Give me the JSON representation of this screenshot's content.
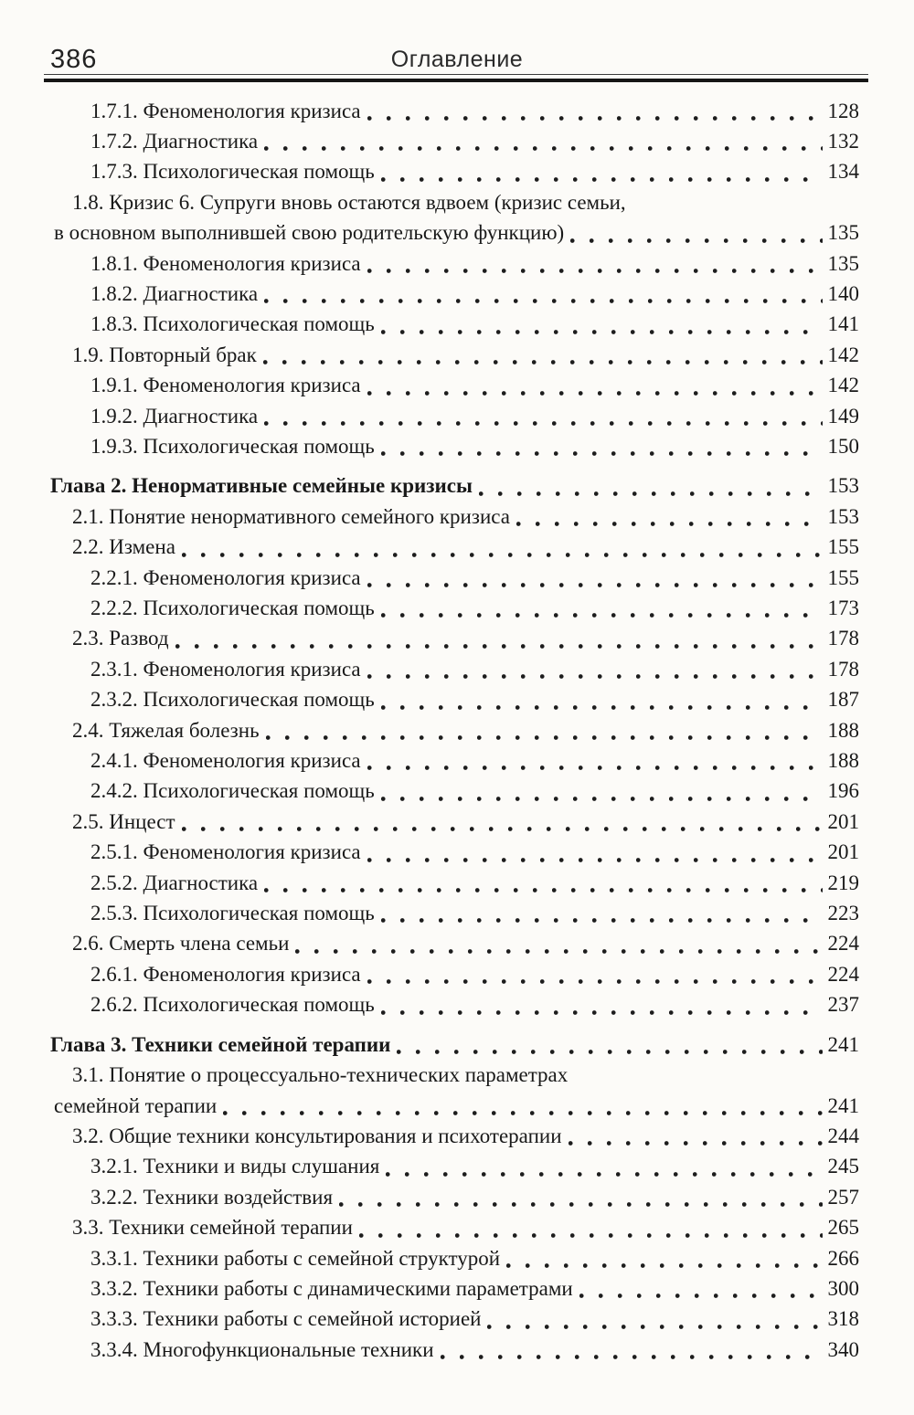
{
  "header": {
    "page_number": "386",
    "title": "Оглавление"
  },
  "colors": {
    "ink": "#191919",
    "paper": "#fcfbf8",
    "rule": "#161616"
  },
  "toc": {
    "entries": [
      {
        "level": "subsection",
        "lines": [
          "1.7.1. Феноменология кризиса"
        ],
        "page": "128"
      },
      {
        "level": "subsection",
        "lines": [
          "1.7.2. Диагностика"
        ],
        "page": "132"
      },
      {
        "level": "subsection",
        "lines": [
          "1.7.3. Психологическая помощь"
        ],
        "page": "134"
      },
      {
        "level": "section",
        "lines": [
          "1.8. Кризис 6. Супруги вновь остаются вдвоем (кризис семьи,",
          "в основном выполнившей свою родительскую функцию)"
        ],
        "page": "135"
      },
      {
        "level": "subsection",
        "lines": [
          "1.8.1. Феноменология кризиса"
        ],
        "page": "135"
      },
      {
        "level": "subsection",
        "lines": [
          "1.8.2. Диагностика"
        ],
        "page": "140"
      },
      {
        "level": "subsection",
        "lines": [
          "1.8.3. Психологическая помощь"
        ],
        "page": "141"
      },
      {
        "level": "section",
        "lines": [
          "1.9. Повторный брак"
        ],
        "page": "142"
      },
      {
        "level": "subsection",
        "lines": [
          "1.9.1. Феноменология кризиса"
        ],
        "page": "142"
      },
      {
        "level": "subsection",
        "lines": [
          "1.9.2. Диагностика"
        ],
        "page": "149"
      },
      {
        "level": "subsection",
        "lines": [
          "1.9.3. Психологическая помощь"
        ],
        "page": "150"
      },
      {
        "level": "chapter",
        "lines": [
          "Глава 2. Ненормативные семейные кризисы"
        ],
        "page": "153"
      },
      {
        "level": "section",
        "lines": [
          "2.1. Понятие ненормативного семейного кризиса"
        ],
        "page": "153"
      },
      {
        "level": "section",
        "lines": [
          "2.2. Измена"
        ],
        "page": "155"
      },
      {
        "level": "subsection",
        "lines": [
          "2.2.1. Феноменология кризиса"
        ],
        "page": "155"
      },
      {
        "level": "subsection",
        "lines": [
          "2.2.2. Психологическая помощь"
        ],
        "page": "173"
      },
      {
        "level": "section",
        "lines": [
          "2.3. Развод"
        ],
        "page": "178"
      },
      {
        "level": "subsection",
        "lines": [
          "2.3.1. Феноменология кризиса"
        ],
        "page": "178"
      },
      {
        "level": "subsection",
        "lines": [
          "2.3.2. Психологическая помощь"
        ],
        "page": "187"
      },
      {
        "level": "section",
        "lines": [
          "2.4. Тяжелая болезнь"
        ],
        "page": "188"
      },
      {
        "level": "subsection",
        "lines": [
          "2.4.1. Феноменология кризиса"
        ],
        "page": "188"
      },
      {
        "level": "subsection",
        "lines": [
          "2.4.2. Психологическая помощь"
        ],
        "page": "196"
      },
      {
        "level": "section",
        "lines": [
          "2.5. Инцест"
        ],
        "page": "201"
      },
      {
        "level": "subsection",
        "lines": [
          "2.5.1. Феноменология кризиса"
        ],
        "page": "201"
      },
      {
        "level": "subsection",
        "lines": [
          "2.5.2. Диагностика"
        ],
        "page": "219"
      },
      {
        "level": "subsection",
        "lines": [
          "2.5.3. Психологическая помощь"
        ],
        "page": "223"
      },
      {
        "level": "section",
        "lines": [
          "2.6. Смерть члена семьи"
        ],
        "page": "224"
      },
      {
        "level": "subsection",
        "lines": [
          "2.6.1. Феноменология кризиса"
        ],
        "page": "224"
      },
      {
        "level": "subsection",
        "lines": [
          "2.6.2. Психологическая помощь"
        ],
        "page": "237"
      },
      {
        "level": "chapter",
        "lines": [
          "Глава 3. Техники семейной терапии"
        ],
        "page": "241"
      },
      {
        "level": "section",
        "lines": [
          "3.1. Понятие о процессуально-технических параметрах",
          "семейной терапии"
        ],
        "page": "241"
      },
      {
        "level": "section",
        "lines": [
          "3.2. Общие техники консультирования и психотерапии"
        ],
        "page": "244"
      },
      {
        "level": "subsection",
        "lines": [
          "3.2.1. Техники и виды слушания"
        ],
        "page": "245"
      },
      {
        "level": "subsection",
        "lines": [
          "3.2.2. Техники воздействия"
        ],
        "page": "257"
      },
      {
        "level": "section",
        "lines": [
          "3.3. Техники семейной терапии"
        ],
        "page": "265"
      },
      {
        "level": "subsection",
        "lines": [
          "3.3.1. Техники работы с семейной структурой"
        ],
        "page": "266"
      },
      {
        "level": "subsection",
        "lines": [
          "3.3.2. Техники работы с динамическими параметрами"
        ],
        "page": "300"
      },
      {
        "level": "subsection",
        "lines": [
          "3.3.3. Техники работы с семейной историей"
        ],
        "page": "318"
      },
      {
        "level": "subsection",
        "lines": [
          "3.3.4. Многофункциональные техники"
        ],
        "page": "340"
      }
    ]
  }
}
